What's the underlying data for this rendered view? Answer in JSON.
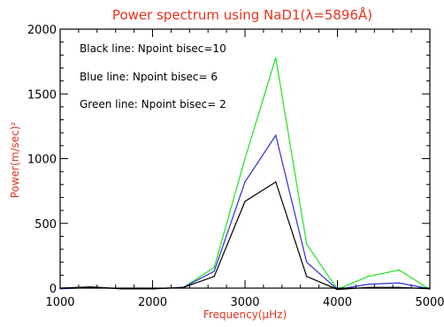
{
  "colors": {
    "title": "#e8321f",
    "axis_label": "#e8321f",
    "black_series": "#000000",
    "blue_series": "#3030d0",
    "green_series": "#20e020"
  },
  "chart_data": {
    "type": "line",
    "title": "Power spectrum using NaD1(λ=5896Å)",
    "xlabel": "Frequency(μHz)",
    "ylabel": "Power(m/sec)²",
    "xlim": [
      1000,
      5000
    ],
    "ylim": [
      0,
      2000
    ],
    "x_ticks": [
      1000,
      2000,
      3000,
      4000,
      5000
    ],
    "y_ticks": [
      0,
      500,
      1000,
      1500,
      2000
    ],
    "grid": false,
    "annotations": [
      "Black line: Npoint bisec=10",
      "Blue line: Npoint bisec= 6",
      "Green line: Npoint bisec= 2"
    ],
    "x": [
      1000,
      1333,
      1667,
      2000,
      2333,
      2667,
      3000,
      3333,
      3667,
      4000,
      4333,
      4667,
      5000
    ],
    "series": [
      {
        "color": "#20e020",
        "values": [
          -5,
          5,
          -5,
          -5,
          5,
          160,
          1000,
          1780,
          340,
          -10,
          90,
          140,
          -10
        ]
      },
      {
        "color": "#3030d0",
        "values": [
          -5,
          5,
          -5,
          -5,
          5,
          130,
          820,
          1180,
          200,
          -10,
          30,
          40,
          -5
        ]
      },
      {
        "color": "#000000",
        "values": [
          0,
          10,
          -5,
          -5,
          5,
          90,
          670,
          820,
          90,
          -10,
          5,
          5,
          -5
        ]
      }
    ]
  }
}
